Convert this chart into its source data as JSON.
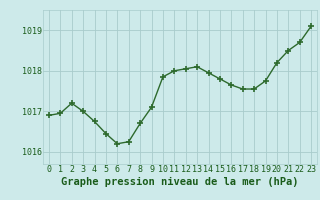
{
  "x": [
    0,
    1,
    2,
    3,
    4,
    5,
    6,
    7,
    8,
    9,
    10,
    11,
    12,
    13,
    14,
    15,
    16,
    17,
    18,
    19,
    20,
    21,
    22,
    23
  ],
  "y": [
    1016.9,
    1016.95,
    1017.2,
    1017.0,
    1016.75,
    1016.45,
    1016.2,
    1016.25,
    1016.7,
    1017.1,
    1017.85,
    1018.0,
    1018.05,
    1018.1,
    1017.95,
    1017.8,
    1017.65,
    1017.55,
    1017.55,
    1017.75,
    1018.2,
    1018.5,
    1018.7,
    1019.1
  ],
  "line_color": "#2d6a2d",
  "marker_color": "#2d6a2d",
  "bg_color": "#cdeaea",
  "plot_bg_color": "#cdeaea",
  "grid_color": "#a8cccc",
  "xlabel": "Graphe pression niveau de la mer (hPa)",
  "xlabel_color": "#1a5c1a",
  "tick_color": "#1a5c1a",
  "ylim": [
    1015.7,
    1019.5
  ],
  "yticks": [
    1016,
    1017,
    1018,
    1019
  ],
  "xticks": [
    0,
    1,
    2,
    3,
    4,
    5,
    6,
    7,
    8,
    9,
    10,
    11,
    12,
    13,
    14,
    15,
    16,
    17,
    18,
    19,
    20,
    21,
    22,
    23
  ],
  "marker_size": 4,
  "line_width": 1.0,
  "xlabel_fontsize": 7.5,
  "tick_fontsize": 6.0
}
